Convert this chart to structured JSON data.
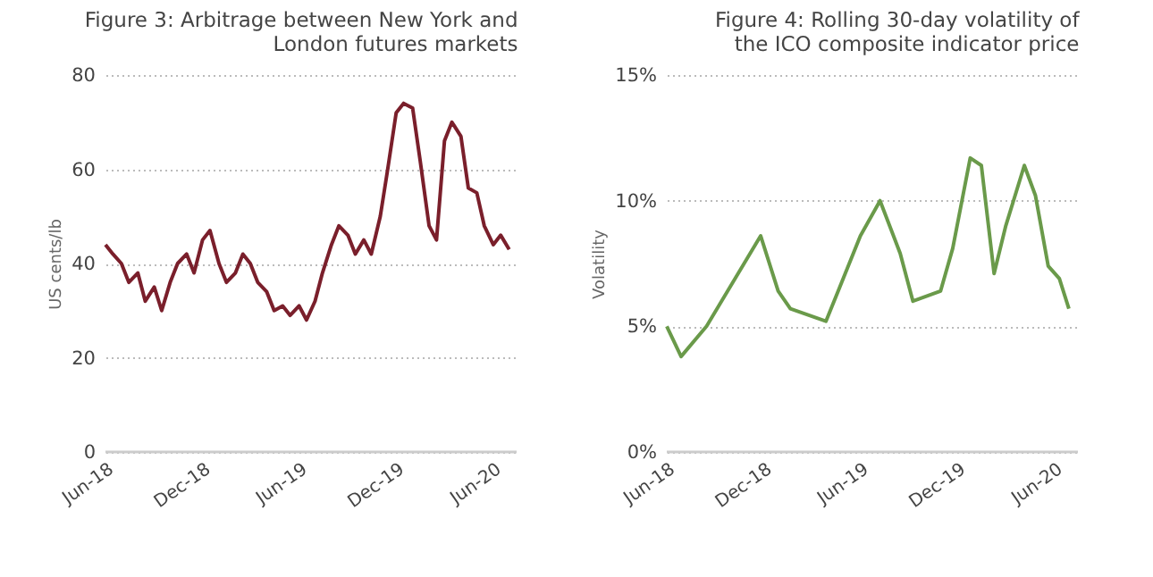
{
  "chart_data": [
    {
      "type": "line",
      "title": "Figure 3:  Arbitrage between New York and London futures markets",
      "ylabel": "US cents/lb",
      "x": [
        "2018-06-01",
        "2018-06-15",
        "2018-07-01",
        "2018-07-15",
        "2018-08-01",
        "2018-08-15",
        "2018-09-01",
        "2018-09-15",
        "2018-10-01",
        "2018-10-15",
        "2018-11-01",
        "2018-11-15",
        "2018-12-01",
        "2018-12-15",
        "2019-01-01",
        "2019-01-15",
        "2019-02-01",
        "2019-02-15",
        "2019-03-01",
        "2019-03-15",
        "2019-04-01",
        "2019-04-15",
        "2019-05-01",
        "2019-05-15",
        "2019-06-01",
        "2019-06-15",
        "2019-07-01",
        "2019-07-15",
        "2019-08-01",
        "2019-08-15",
        "2019-09-01",
        "2019-09-15",
        "2019-10-01",
        "2019-10-15",
        "2019-11-01",
        "2019-11-15",
        "2019-12-01",
        "2019-12-15",
        "2020-01-01",
        "2020-01-15",
        "2020-02-01",
        "2020-02-15",
        "2020-03-01",
        "2020-03-15",
        "2020-04-01",
        "2020-04-15",
        "2020-05-01",
        "2020-05-15",
        "2020-06-01",
        "2020-06-15",
        "2020-07-01"
      ],
      "series": [
        {
          "color": "#7a1f2b",
          "values": [
            44,
            42,
            40,
            36,
            38,
            32,
            35,
            30,
            36,
            40,
            42,
            38,
            45,
            47,
            40,
            36,
            38,
            42,
            40,
            36,
            34,
            30,
            31,
            29,
            31,
            28,
            32,
            38,
            44,
            48,
            46,
            42,
            45,
            42,
            50,
            60,
            72,
            74,
            73,
            62,
            48,
            45,
            66,
            70,
            67,
            56,
            55,
            48,
            44,
            46,
            43
          ]
        }
      ],
      "xlim": [
        "2018-06-01",
        "2020-07-15"
      ],
      "xticks": [
        {
          "value": "2018-06-01",
          "label": "Jun-18"
        },
        {
          "value": "2018-12-01",
          "label": "Dec-18"
        },
        {
          "value": "2019-06-01",
          "label": "Jun-19"
        },
        {
          "value": "2019-12-01",
          "label": "Dec-19"
        },
        {
          "value": "2020-06-01",
          "label": "Jun-20"
        }
      ],
      "ylim": [
        0,
        80
      ],
      "yticks": [
        0,
        20,
        40,
        60,
        80
      ],
      "grid": "y"
    },
    {
      "type": "line",
      "title": "Figure 4:  Rolling 30-day volatility of the ICO  composite indicator price",
      "ylabel": "Volatility",
      "x": [
        "2018-06-01",
        "2018-06-28",
        "2018-08-15",
        "2018-11-25",
        "2018-12-28",
        "2019-01-20",
        "2019-03-28",
        "2019-04-20",
        "2019-06-01",
        "2019-07-08",
        "2019-08-15",
        "2019-09-08",
        "2019-10-30",
        "2019-11-22",
        "2019-12-25",
        "2020-01-15",
        "2020-02-08",
        "2020-03-01",
        "2020-04-05",
        "2020-04-26",
        "2020-05-20",
        "2020-06-10",
        "2020-06-28"
      ],
      "series": [
        {
          "color": "#6a9a4a",
          "values": [
            5.0,
            3.8,
            5.0,
            8.6,
            6.4,
            5.7,
            5.2,
            6.4,
            8.6,
            10.0,
            7.9,
            6.0,
            6.4,
            8.1,
            11.7,
            11.4,
            7.1,
            9.0,
            11.4,
            10.2,
            7.4,
            6.9,
            5.7
          ]
        }
      ],
      "xlim": [
        "2018-06-01",
        "2020-07-15"
      ],
      "xticks": [
        {
          "value": "2018-06-01",
          "label": "Jun-18"
        },
        {
          "value": "2018-12-01",
          "label": "Dec-18"
        },
        {
          "value": "2019-06-01",
          "label": "Jun-19"
        },
        {
          "value": "2019-12-01",
          "label": "Dec-19"
        },
        {
          "value": "2020-06-01",
          "label": "Jun-20"
        }
      ],
      "ylim": [
        0,
        15
      ],
      "yticks": [
        {
          "value": 0,
          "label": "0%"
        },
        {
          "value": 5,
          "label": "5%"
        },
        {
          "value": 10,
          "label": "10%"
        },
        {
          "value": 15,
          "label": "15%"
        }
      ],
      "grid": "y"
    }
  ]
}
